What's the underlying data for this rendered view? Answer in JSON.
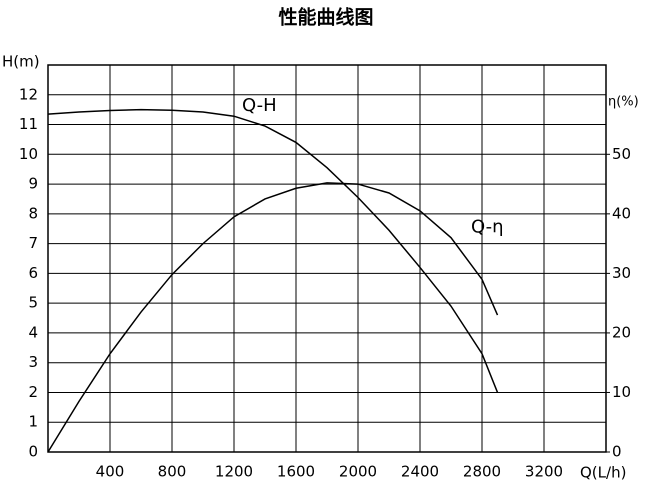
{
  "chart_data": {
    "type": "line",
    "title": "性能曲线图",
    "x_label": "Q(L/h)",
    "y_label": "H(m)",
    "y2_label": "η(%)",
    "x": [
      0,
      200,
      400,
      600,
      800,
      1000,
      1200,
      1400,
      1600,
      1800,
      2000,
      2200,
      2400,
      2600,
      2800,
      2900
    ],
    "series": [
      {
        "name": "Q-H",
        "color": "#000000",
        "values": [
          11.35,
          11.42,
          11.47,
          11.5,
          11.48,
          11.42,
          11.28,
          10.95,
          10.4,
          9.55,
          8.55,
          7.45,
          6.2,
          4.9,
          3.3,
          2.0
        ]
      },
      {
        "name": "Q-η",
        "color": "#000000",
        "axis": "y2",
        "values": [
          0,
          8.5,
          16.5,
          23.5,
          29.8,
          35,
          39.5,
          42.5,
          44.3,
          45.2,
          45,
          43.5,
          40.5,
          36,
          29,
          23
        ]
      }
    ],
    "xlim": [
      0,
      3600
    ],
    "xticks": [
      400,
      800,
      1200,
      1600,
      2000,
      2400,
      2800,
      3200
    ],
    "ylim": [
      0,
      13
    ],
    "yticks": [
      0,
      1,
      2,
      3,
      4,
      5,
      6,
      7,
      8,
      9,
      10,
      11,
      12
    ],
    "y2lim": [
      0,
      65
    ],
    "y2ticks": [
      0,
      10,
      20,
      30,
      40,
      50
    ],
    "grid": true
  }
}
